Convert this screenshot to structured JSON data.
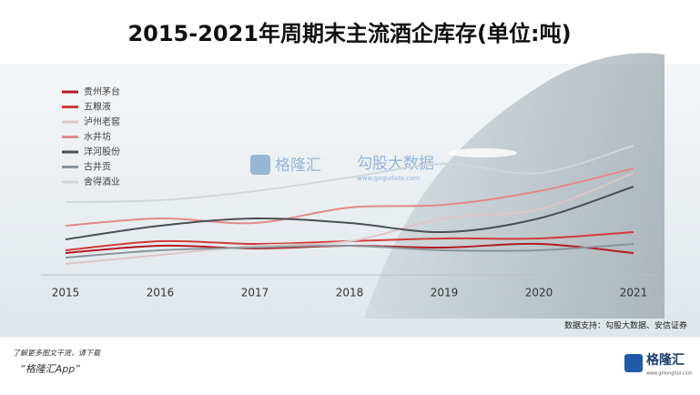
{
  "chart_data": {
    "type": "line",
    "title": "2015-2021年周期末主流酒企库存(单位:吨)",
    "categories": [
      "2015",
      "2016",
      "2017",
      "2018",
      "2019",
      "2020",
      "2021"
    ],
    "series": [
      {
        "name": "贵州茅台",
        "color": "#b01c24",
        "values": [
          11,
          15,
          13.5,
          15,
          14,
          16,
          11
        ]
      },
      {
        "name": "五粮液",
        "color": "#d23a3a",
        "values": [
          12.5,
          17.5,
          16,
          17.5,
          19,
          19,
          22.5
        ]
      },
      {
        "name": "泸州老窖",
        "color": "#dcc6c8",
        "values": [
          5,
          10,
          15,
          17.5,
          30,
          35,
          55
        ]
      },
      {
        "name": "水井坊",
        "color": "#e08a8c",
        "values": [
          26,
          30,
          27.5,
          36,
          37.5,
          45,
          57.5
        ]
      },
      {
        "name": "洋河股份",
        "color": "#4a4f54",
        "values": [
          18.5,
          26,
          30,
          27.5,
          22.5,
          30,
          47.5
        ]
      },
      {
        "name": "古井贡",
        "color": "#8a9399",
        "values": [
          8.5,
          12.5,
          14,
          15,
          12.5,
          12.5,
          16
        ]
      },
      {
        "name": "舍得酒业",
        "color": "#d0d6da",
        "values": [
          39,
          40,
          45,
          52.5,
          60,
          55,
          70
        ]
      }
    ],
    "ylim": [
      0,
      100
    ],
    "legend": "upper left",
    "source": "数据支持：勾股大数据、安信证券"
  },
  "watermark": {
    "brand": "格隆汇",
    "partner": "勾股大数据",
    "url": "www.gogudata.com"
  },
  "footer": {
    "note": "了解更多图文干货，请下载",
    "app": "“格隆汇App”",
    "logo": "格隆汇",
    "logo_url": "www.gelonghui.com"
  }
}
